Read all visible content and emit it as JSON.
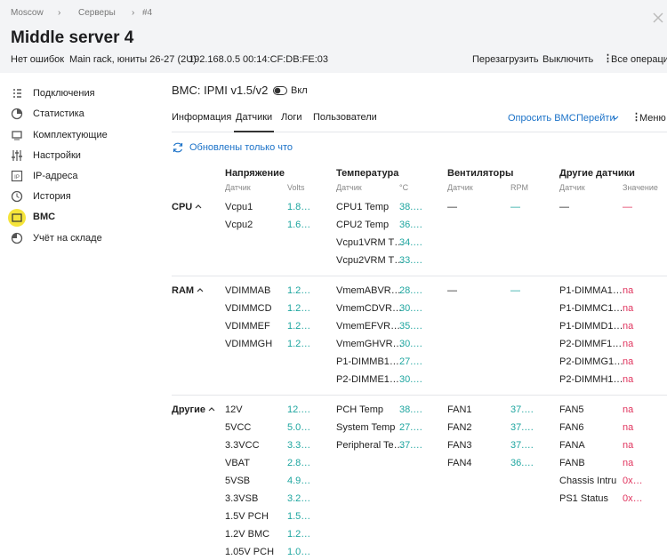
{
  "breadcrumbs": [
    "Moscow",
    "Серверы",
    "#4"
  ],
  "header": {
    "title": "Middle server 4",
    "info": [
      "Нет ошибок",
      "Main rack, юниты 26-27 (2U)",
      "192.168.0.5",
      "00:14:CF:DB:FE:03"
    ],
    "actions": [
      "Перезагрузить",
      "Выключить",
      "Все операции"
    ]
  },
  "sidebar": {
    "items": [
      "Подключения",
      "Статистика",
      "Комплектующие",
      "Настройки",
      "IP-адреса",
      "История",
      "BMC",
      "Учёт на складе"
    ]
  },
  "panel": {
    "title": "BMC: IPMI v1.5/v2",
    "toggle": "Вкл",
    "tabs": [
      "Информация",
      "Датчики",
      "Логи",
      "Пользователи"
    ],
    "actions": [
      "Опросить BMC",
      "Перейти",
      "Меню"
    ],
    "status": "Обновлены только что"
  },
  "sensors": {
    "columns": [
      {
        "title": "Напряжение",
        "sub": [
          "Датчик",
          "Volts"
        ]
      },
      {
        "title": "Температура",
        "sub": [
          "Датчик",
          "°C"
        ]
      },
      {
        "title": "Вентиляторы",
        "sub": [
          "Датчик",
          "RPM"
        ]
      },
      {
        "title": "Другие датчики",
        "sub": [
          "Датчик",
          "Значение"
        ]
      }
    ],
    "groups": [
      {
        "name": "CPU",
        "rows": [
          [
            "Vcpu1",
            "1.8…",
            "CPU1 Temp",
            "38.…",
            "—",
            "—",
            "—",
            "—"
          ],
          [
            "Vcpu2",
            "1.6…",
            "CPU2 Temp",
            "36.…",
            null,
            null,
            null,
            null
          ],
          [
            null,
            null,
            "Vcpu1VRM T…",
            "34.…",
            null,
            null,
            null,
            null
          ],
          [
            null,
            null,
            "Vcpu2VRM T…",
            "33.…",
            null,
            null,
            null,
            null
          ]
        ]
      },
      {
        "name": "RAM",
        "rows": [
          [
            "VDIMMAB",
            "1.2…",
            "VmemABVR…",
            "28.…",
            "—",
            "—",
            "P1-DIMMA1…",
            "na"
          ],
          [
            "VDIMMCD",
            "1.2…",
            "VmemCDVR…",
            "30.…",
            null,
            null,
            "P1-DIMMC1…",
            "na"
          ],
          [
            "VDIMMEF",
            "1.2…",
            "VmemEFVR…",
            "35.…",
            null,
            null,
            "P1-DIMMD1…",
            "na"
          ],
          [
            "VDIMMGH",
            "1.2…",
            "VmemGHVR…",
            "30.…",
            null,
            null,
            "P2-DIMMF1…",
            "na"
          ],
          [
            null,
            null,
            "P1-DIMMB1…",
            "27.…",
            null,
            null,
            "P2-DIMMG1…",
            "na"
          ],
          [
            null,
            null,
            "P2-DIMME1…",
            "30.…",
            null,
            null,
            "P2-DIMMH1…",
            "na"
          ]
        ]
      },
      {
        "name": "Другие",
        "rows": [
          [
            "12V",
            "12.…",
            "PCH Temp",
            "38.…",
            "FAN1",
            "37.…",
            "FAN5",
            "na"
          ],
          [
            "5VCC",
            "5.0…",
            "System Temp",
            "27.…",
            "FAN2",
            "37.…",
            "FAN6",
            "na"
          ],
          [
            "3.3VCC",
            "3.3…",
            "Peripheral Te…",
            "37.…",
            "FAN3",
            "37.…",
            "FANA",
            "na"
          ],
          [
            "VBAT",
            "2.8…",
            null,
            null,
            "FAN4",
            "36.…",
            "FANB",
            "na"
          ],
          [
            "5VSB",
            "4.9…",
            null,
            null,
            null,
            null,
            "Chassis Intru",
            "0x…"
          ],
          [
            "3.3VSB",
            "3.2…",
            null,
            null,
            null,
            null,
            "PS1 Status",
            "0x…"
          ],
          [
            "1.5V PCH",
            "1.5…",
            null,
            null,
            null,
            null,
            null,
            null
          ],
          [
            "1.2V BMC",
            "1.2…",
            null,
            null,
            null,
            null,
            null,
            null
          ],
          [
            "1.05V PCH",
            "1.0…",
            null,
            null,
            null,
            null,
            null,
            null
          ]
        ]
      }
    ]
  }
}
